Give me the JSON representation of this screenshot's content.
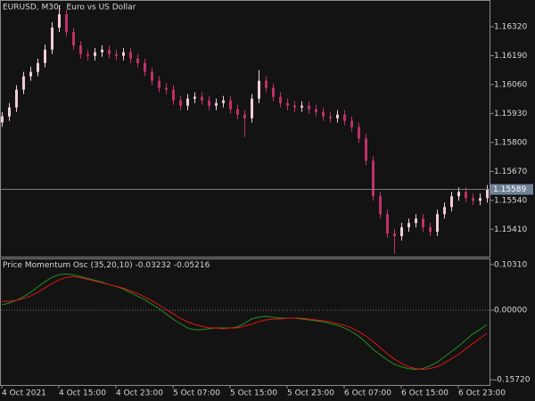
{
  "chart_data": [
    {
      "type": "candlestick",
      "title": "EURUSD, M30:  Euro vs US Dollar",
      "up_color": "#f2ccd9",
      "down_color": "#c0306a",
      "categories": [
        "4 Oct 2021",
        null,
        null,
        null,
        null,
        null,
        null,
        null,
        "4 Oct 15:00",
        null,
        null,
        null,
        null,
        null,
        null,
        null,
        "4 Oct 23:00",
        null,
        null,
        null,
        null,
        null,
        null,
        null,
        "5 Oct 07:00",
        null,
        null,
        null,
        null,
        null,
        null,
        null,
        "5 Oct 15:00",
        null,
        null,
        null,
        null,
        null,
        null,
        null,
        "5 Oct 23:00",
        null,
        null,
        null,
        null,
        null,
        null,
        null,
        "6 Oct 07:00",
        null,
        null,
        null,
        null,
        null,
        null,
        null,
        "6 Oct 15:00",
        null,
        null,
        null,
        null,
        null,
        null,
        null,
        "6 Oct 23:00",
        null,
        null,
        null,
        null
      ],
      "open": [
        1.1589,
        1.15917,
        1.15957,
        1.16037,
        1.16097,
        1.16117,
        1.16157,
        1.16217,
        1.16316,
        1.16376,
        1.16296,
        1.16236,
        1.16197,
        1.16189,
        1.16205,
        1.16217,
        1.16197,
        1.16189,
        1.16205,
        1.16177,
        1.16157,
        1.16117,
        1.16077,
        1.16045,
        1.16037,
        1.15989,
        1.15965,
        1.15997,
        1.16005,
        1.15989,
        1.15965,
        1.15977,
        1.15989,
        1.15949,
        1.15925,
        1.15909,
        1.15997,
        1.16077,
        1.16045,
        1.16005,
        1.15977,
        1.15965,
        1.15957,
        1.15965,
        1.15949,
        1.15937,
        1.15917,
        1.15909,
        1.15925,
        1.15897,
        1.15869,
        1.15818,
        1.15718,
        1.15558,
        1.15478,
        1.15391,
        1.15379,
        1.15419,
        1.15438,
        1.15458,
        1.15419,
        1.15399,
        1.15478,
        1.1551,
        1.15558,
        1.15578,
        1.1555,
        1.15538,
        1.1555
      ],
      "high": [
        1.15937,
        1.15977,
        1.16057,
        1.16117,
        1.1614,
        1.16177,
        1.1624,
        1.1634,
        1.16416,
        1.16396,
        1.16316,
        1.16256,
        1.16217,
        1.16225,
        1.16237,
        1.16237,
        1.16217,
        1.16225,
        1.16225,
        1.16197,
        1.16177,
        1.16137,
        1.16097,
        1.16065,
        1.16057,
        1.16009,
        1.16017,
        1.16025,
        1.16025,
        1.16009,
        1.15997,
        1.16009,
        1.16009,
        1.15969,
        1.15945,
        1.16017,
        1.16125,
        1.16097,
        1.16065,
        1.16025,
        1.15997,
        1.15985,
        1.15985,
        1.15985,
        1.15969,
        1.15957,
        1.15937,
        1.15945,
        1.15945,
        1.15917,
        1.15889,
        1.15838,
        1.15738,
        1.15578,
        1.15498,
        1.15411,
        1.15439,
        1.15458,
        1.15478,
        1.15478,
        1.15439,
        1.15498,
        1.1553,
        1.15578,
        1.15598,
        1.15598,
        1.1557,
        1.1557,
        1.15609
      ],
      "low": [
        1.1587,
        1.15897,
        1.15937,
        1.16017,
        1.16077,
        1.16097,
        1.16137,
        1.16197,
        1.16296,
        1.16276,
        1.16216,
        1.16177,
        1.16169,
        1.16169,
        1.16185,
        1.16177,
        1.16169,
        1.16169,
        1.16157,
        1.16137,
        1.16097,
        1.16057,
        1.16025,
        1.16017,
        1.15969,
        1.15945,
        1.15945,
        1.15977,
        1.15969,
        1.15945,
        1.15945,
        1.15957,
        1.15929,
        1.15905,
        1.15825,
        1.15889,
        1.15977,
        1.16025,
        1.15985,
        1.15957,
        1.15945,
        1.15937,
        1.15937,
        1.15929,
        1.15917,
        1.15897,
        1.15889,
        1.15889,
        1.15877,
        1.15849,
        1.15798,
        1.15698,
        1.15538,
        1.15458,
        1.15371,
        1.153,
        1.15359,
        1.15399,
        1.15418,
        1.15399,
        1.15379,
        1.15379,
        1.15458,
        1.1549,
        1.15538,
        1.1553,
        1.15518,
        1.15518,
        1.1553
      ],
      "close": [
        1.15917,
        1.15957,
        1.16037,
        1.16097,
        1.16117,
        1.16157,
        1.16217,
        1.16316,
        1.16376,
        1.16296,
        1.16236,
        1.16197,
        1.16189,
        1.16205,
        1.16217,
        1.16197,
        1.16189,
        1.16205,
        1.16177,
        1.16157,
        1.16117,
        1.16077,
        1.16045,
        1.16037,
        1.15989,
        1.15965,
        1.15997,
        1.16005,
        1.15989,
        1.15965,
        1.15977,
        1.15989,
        1.15949,
        1.15925,
        1.15909,
        1.15997,
        1.16077,
        1.16045,
        1.16005,
        1.15977,
        1.15965,
        1.15957,
        1.15965,
        1.15949,
        1.15937,
        1.15917,
        1.15909,
        1.15925,
        1.15897,
        1.15869,
        1.15818,
        1.15718,
        1.15558,
        1.15478,
        1.15391,
        1.15379,
        1.15419,
        1.15438,
        1.15458,
        1.15419,
        1.15399,
        1.15478,
        1.1551,
        1.15558,
        1.15578,
        1.1555,
        1.15538,
        1.1555,
        1.15589
      ],
      "ylim": [
        1.15287,
        1.16436
      ],
      "yticks": [
        {
          "value": 1.1632,
          "label": "1.16320"
        },
        {
          "value": 1.1619,
          "label": "1.16190"
        },
        {
          "value": 1.1606,
          "label": "1.16060"
        },
        {
          "value": 1.1593,
          "label": "1.15930"
        },
        {
          "value": 1.158,
          "label": "1.15800"
        },
        {
          "value": 1.1567,
          "label": "1.15670"
        },
        {
          "value": 1.1554,
          "label": "1.15540"
        },
        {
          "value": 1.1541,
          "label": "1.15410"
        }
      ]
    },
    {
      "type": "line",
      "title": "Price Momentum Osc (35,20,10)",
      "series": [
        {
          "color": "#1f8f1f",
          "values": [
            0.012,
            0.016,
            0.022,
            0.03,
            0.04,
            0.052,
            0.064,
            0.074,
            0.08,
            0.082,
            0.08,
            0.076,
            0.072,
            0.068,
            0.064,
            0.058,
            0.054,
            0.048,
            0.04,
            0.032,
            0.024,
            0.014,
            0.004,
            -0.008,
            -0.02,
            -0.03,
            -0.04,
            -0.044,
            -0.044,
            -0.042,
            -0.04,
            -0.04,
            -0.04,
            -0.038,
            -0.03,
            -0.02,
            -0.016,
            -0.014,
            -0.016,
            -0.018,
            -0.018,
            -0.018,
            -0.02,
            -0.022,
            -0.024,
            -0.026,
            -0.03,
            -0.034,
            -0.04,
            -0.048,
            -0.058,
            -0.072,
            -0.088,
            -0.1,
            -0.112,
            -0.122,
            -0.128,
            -0.132,
            -0.134,
            -0.132,
            -0.126,
            -0.118,
            -0.106,
            -0.094,
            -0.082,
            -0.068,
            -0.054,
            -0.044,
            -0.03232
          ]
        },
        {
          "color": "#e01414",
          "values": [
            0.02,
            0.02,
            0.022,
            0.026,
            0.032,
            0.04,
            0.05,
            0.06,
            0.068,
            0.074,
            0.076,
            0.074,
            0.07,
            0.066,
            0.062,
            0.058,
            0.054,
            0.05,
            0.044,
            0.038,
            0.03,
            0.022,
            0.012,
            0.002,
            -0.008,
            -0.018,
            -0.026,
            -0.032,
            -0.036,
            -0.04,
            -0.04,
            -0.042,
            -0.04,
            -0.04,
            -0.036,
            -0.032,
            -0.026,
            -0.022,
            -0.02,
            -0.02,
            -0.018,
            -0.018,
            -0.018,
            -0.02,
            -0.022,
            -0.024,
            -0.026,
            -0.03,
            -0.034,
            -0.04,
            -0.048,
            -0.058,
            -0.07,
            -0.084,
            -0.098,
            -0.11,
            -0.12,
            -0.128,
            -0.132,
            -0.134,
            -0.132,
            -0.128,
            -0.12,
            -0.11,
            -0.1,
            -0.088,
            -0.076,
            -0.064,
            -0.05216
          ]
        }
      ],
      "ylim": [
        -0.169,
        0.115
      ],
      "yticks": [
        {
          "value": 0.1031,
          "label": "0.10310"
        },
        {
          "value": 0,
          "label": "0.00000"
        },
        {
          "value": -0.1572,
          "label": "-0.15720"
        }
      ]
    }
  ]
}
